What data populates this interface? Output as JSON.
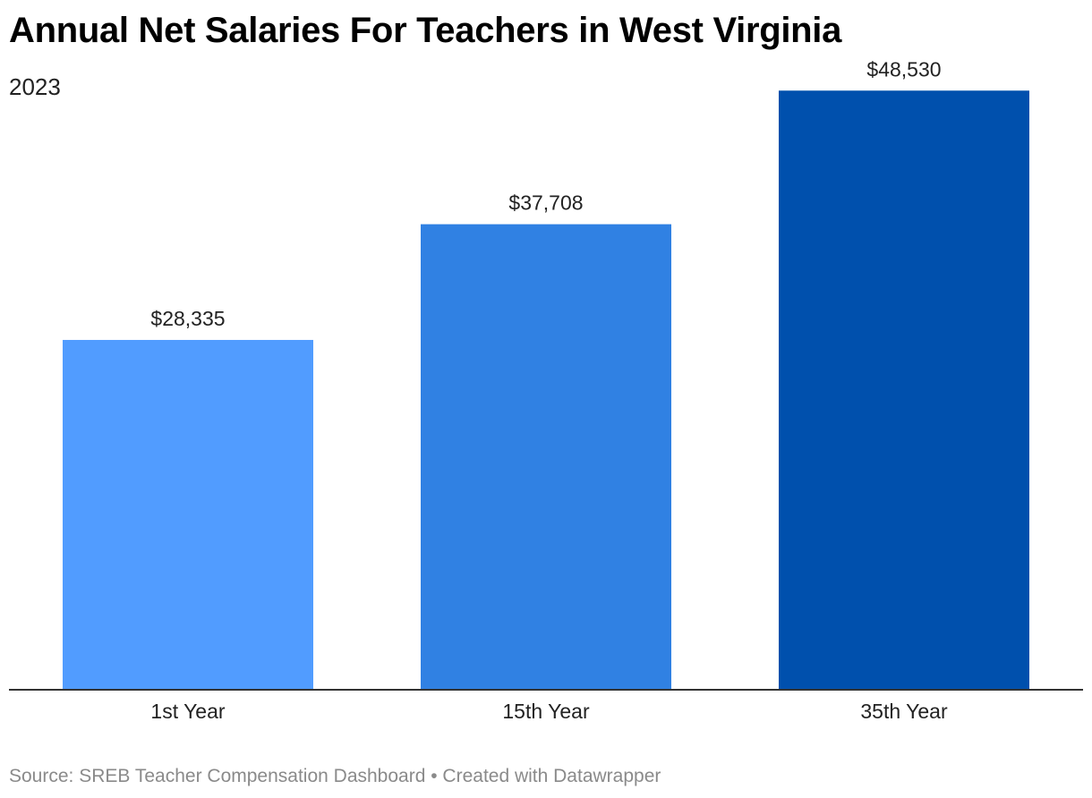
{
  "header": {
    "title": "Annual Net Salaries For Teachers in West Virginia",
    "subtitle": "2023"
  },
  "footer": {
    "source_prefix": "Source: ",
    "source_name": "SREB Teacher Compensation Dashboard",
    "separator": " • ",
    "credit": "Created with Datawrapper"
  },
  "chart_data": {
    "type": "bar",
    "title": "Annual Net Salaries For Teachers in West Virginia",
    "subtitle": "2023",
    "xlabel": "",
    "ylabel": "",
    "categories": [
      "1st Year",
      "15th Year",
      "35th Year"
    ],
    "values": [
      28335,
      37708,
      48530
    ],
    "value_labels": [
      "$28,335",
      "$37,708",
      "$48,530"
    ],
    "colors": [
      "#519cff",
      "#3081e3",
      "#0050ad"
    ],
    "ylim": [
      0,
      50000
    ],
    "grid": false,
    "legend": "none"
  }
}
